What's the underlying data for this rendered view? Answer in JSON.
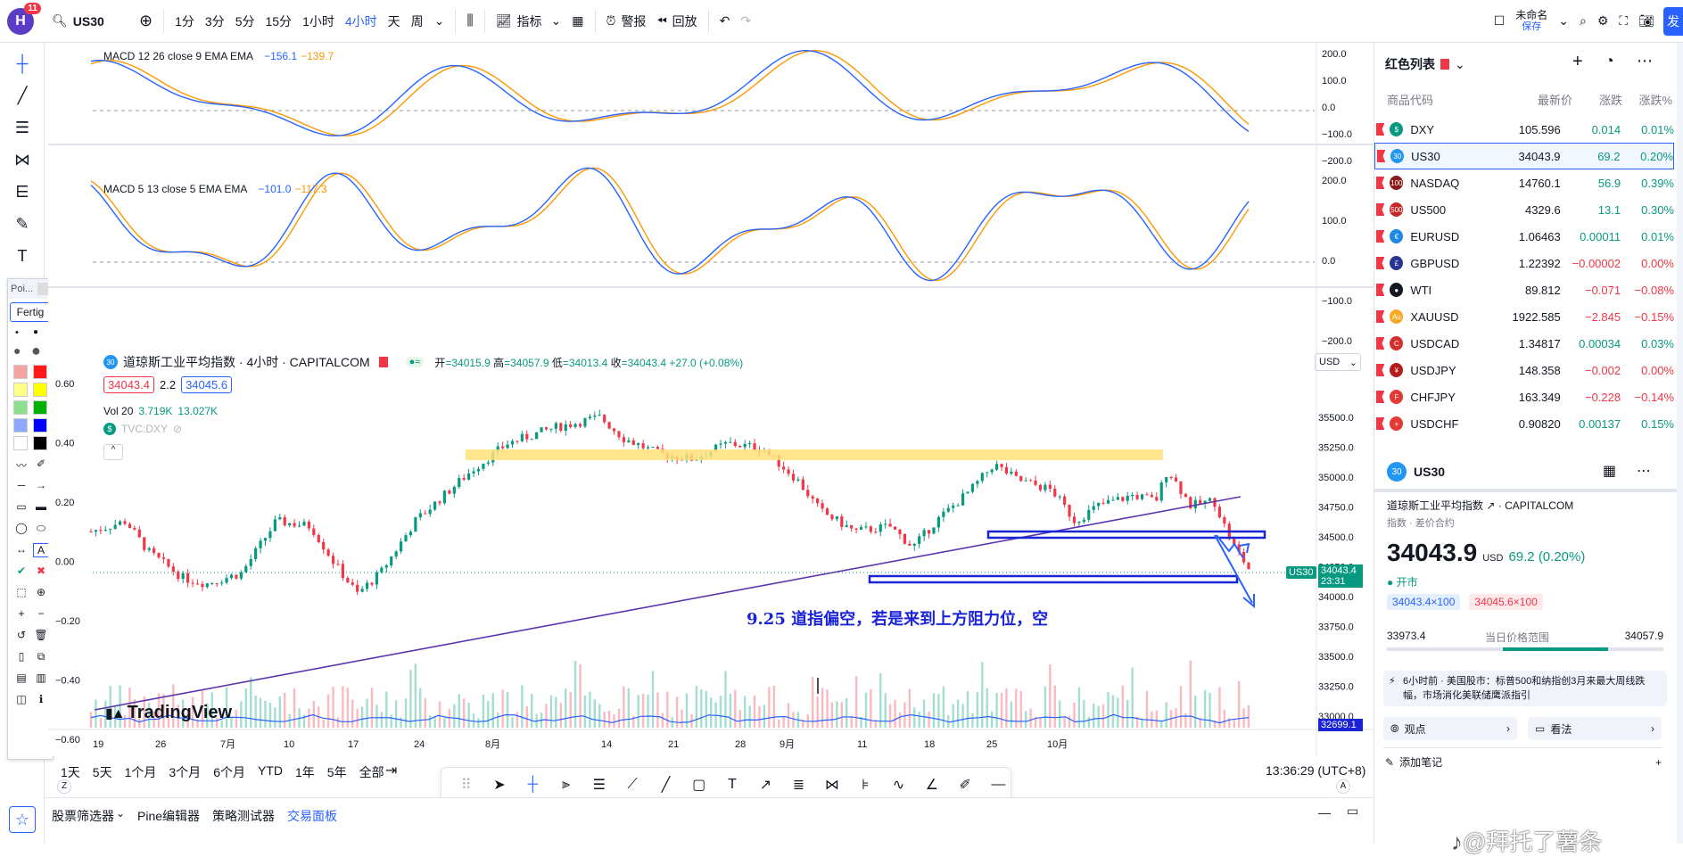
{
  "header": {
    "notifications": "11",
    "symbol": "US30",
    "intervals": [
      "1分",
      "3分",
      "5分",
      "15分",
      "1小时",
      "4小时",
      "天",
      "周"
    ],
    "active_interval": "4小时",
    "indicators": "指标",
    "alerts": "警报",
    "replay": "回放",
    "layout_name": "未命名",
    "saved": "保存",
    "right_edge": "发"
  },
  "colors": {
    "accent": "#2962ff",
    "up": "#089981",
    "down": "#f23645",
    "macd_blue": "#2962ff",
    "macd_orange": "#ff9800",
    "trend": "#5e35b1",
    "zone": "#ffeb8a"
  },
  "macd1": {
    "label": "MACD 12 26 close 9 EMA EMA",
    "v1": "−156.1",
    "v2": "−139.7",
    "ticks": [
      "200.0",
      "100.0",
      "0.0",
      "−100.0",
      "−200.0"
    ]
  },
  "macd2": {
    "label": "MACD 5 13 close 5 EMA EMA",
    "v1": "−101.0",
    "v2": "−117.3",
    "ticks": [
      "200.0",
      "100.0",
      "0.0",
      "−100.0",
      "−200.0"
    ]
  },
  "main": {
    "title": "道琼斯工业平均指数 · 4小时 · CAPITALCOM",
    "ohlc_o_label": "开",
    "ohlc_o": "=34015.9",
    "ohlc_h_label": "高",
    "ohlc_h": "=34057.9",
    "ohlc_l_label": "低",
    "ohlc_l": "=34013.4",
    "ohlc_c_label": "收",
    "ohlc_c": "=34043.4",
    "ohlc_chg": "+27.0 (+0.08%)",
    "bid": "34043.4",
    "spread": "2.2",
    "ask": "34045.6",
    "vol_label": "Vol 20",
    "vol1": "3.719K",
    "vol2": "13.027K",
    "compare": "TVC:DXY",
    "currency": "USD",
    "left_ticks": [
      "0.60",
      "0.40",
      "0.20",
      "0.00",
      "−0.20",
      "−0.40",
      "−0.60"
    ],
    "right_ticks": [
      "35500.0",
      "35250.0",
      "35000.0",
      "34750.0",
      "34500.0",
      "34250.0",
      "34000.0",
      "33750.0",
      "33500.0",
      "33250.0",
      "33000.0"
    ],
    "price_tag_sym": "US30",
    "price_tag": "34043.4",
    "countdown": "23:31",
    "low_tag": "32699.1",
    "annotation": "9.25 道指偏空，若是来到上方阻力位，空",
    "logo": "TradingView",
    "x_ticks": [
      "19",
      "26",
      "7月",
      "10",
      "17",
      "24",
      "8月",
      "14",
      "21",
      "28",
      "9月",
      "11",
      "18",
      "25",
      "10月"
    ]
  },
  "timebar": {
    "ranges": [
      "1天",
      "5天",
      "1个月",
      "3个月",
      "6个月",
      "YTD",
      "1年",
      "5年",
      "全部"
    ],
    "clock": "13:36:29 (UTC+8)"
  },
  "bottom_tabs": [
    "股票筛选器",
    "Pine编辑器",
    "策略测试器",
    "交易面板"
  ],
  "palette": {
    "name": "Poi...",
    "done": "Fertig"
  },
  "watchlist": {
    "title": "红色列表",
    "cols": [
      "商品代码",
      "最新价",
      "涨跌",
      "涨跌%"
    ],
    "rows": [
      {
        "sym": "DXY",
        "last": "105.596",
        "chg": "0.014",
        "chgp": "0.01%",
        "dir": "pos",
        "ic": "$",
        "icc": "#089981"
      },
      {
        "sym": "US30",
        "last": "34043.9",
        "chg": "69.2",
        "chgp": "0.20%",
        "dir": "pos",
        "ic": "30",
        "icc": "#2196f3"
      },
      {
        "sym": "NASDAQ",
        "last": "14760.1",
        "chg": "56.9",
        "chgp": "0.39%",
        "dir": "pos",
        "ic": "100",
        "icc": "#8b1a1a"
      },
      {
        "sym": "US500",
        "last": "4329.6",
        "chg": "13.1",
        "chgp": "0.30%",
        "dir": "pos",
        "ic": "500",
        "icc": "#c62828"
      },
      {
        "sym": "EURUSD",
        "last": "1.06463",
        "chg": "0.00011",
        "chgp": "0.01%",
        "dir": "pos",
        "ic": "€",
        "icc": "#1e88e5"
      },
      {
        "sym": "GBPUSD",
        "last": "1.22392",
        "chg": "−0.00002",
        "chgp": "0.00%",
        "dir": "neg",
        "ic": "£",
        "icc": "#283593"
      },
      {
        "sym": "WTI",
        "last": "89.812",
        "chg": "−0.071",
        "chgp": "−0.08%",
        "dir": "neg",
        "ic": "●",
        "icc": "#131722"
      },
      {
        "sym": "XAUUSD",
        "last": "1922.585",
        "chg": "−2.845",
        "chgp": "−0.15%",
        "dir": "neg",
        "ic": "Au",
        "icc": "#f9a825"
      },
      {
        "sym": "USDCAD",
        "last": "1.34817",
        "chg": "0.00034",
        "chgp": "0.03%",
        "dir": "pos",
        "ic": "C",
        "icc": "#d32f2f"
      },
      {
        "sym": "USDJPY",
        "last": "148.358",
        "chg": "−0.002",
        "chgp": "0.00%",
        "dir": "neg",
        "ic": "¥",
        "icc": "#b71c1c"
      },
      {
        "sym": "CHFJPY",
        "last": "163.349",
        "chg": "−0.228",
        "chgp": "−0.14%",
        "dir": "neg",
        "ic": "F",
        "icc": "#e53935"
      },
      {
        "sym": "USDCHF",
        "last": "0.90820",
        "chg": "0.00137",
        "chgp": "0.15%",
        "dir": "pos",
        "ic": "+",
        "icc": "#e53935"
      }
    ]
  },
  "details": {
    "sym": "US30",
    "name": "道琼斯工业平均指数",
    "exchange": "CAPITALCOM",
    "type": "指数 · 差价合约",
    "price": "34043.9",
    "currency": "USD",
    "change": "69.2 (0.20%)",
    "market": "开市",
    "bid": "34043.4×100",
    "ask": "34045.6×100",
    "range_low": "33973.4",
    "range_label": "当日价格范围",
    "range_high": "34057.9",
    "range_pos": 0.8,
    "news": "6小时前 · 美国股市：标普500和纳指创3月来最大周线跌幅，市场消化美联储鹰派指引",
    "ideas": "观点",
    "minds": "看法",
    "add_note": "添加笔记"
  },
  "watermark": "@拜托了薯条"
}
